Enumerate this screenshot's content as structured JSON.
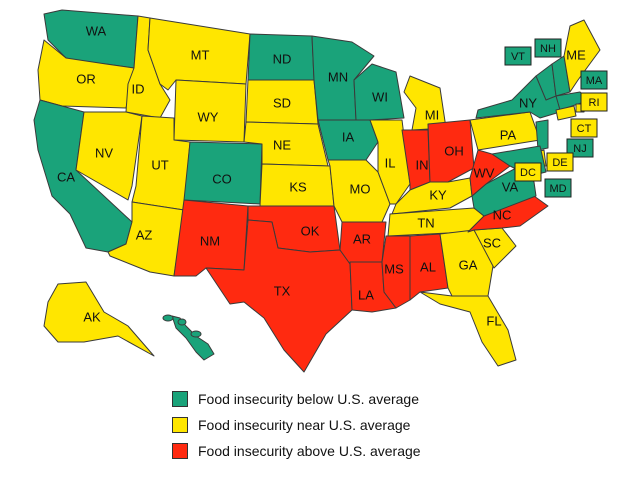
{
  "colors": {
    "below": "#1aa37a",
    "near": "#ffe600",
    "above": "#ff2a10"
  },
  "legend": [
    {
      "category": "below",
      "label": "Food insecurity below U.S. average"
    },
    {
      "category": "near",
      "label": "Food insecurity near U.S. average"
    },
    {
      "category": "above",
      "label": "Food insecurity above U.S. average"
    }
  ],
  "states": [
    {
      "abbr": "WA",
      "cat": "below"
    },
    {
      "abbr": "OR",
      "cat": "near"
    },
    {
      "abbr": "CA",
      "cat": "below"
    },
    {
      "abbr": "ID",
      "cat": "near"
    },
    {
      "abbr": "NV",
      "cat": "near"
    },
    {
      "abbr": "MT",
      "cat": "near"
    },
    {
      "abbr": "WY",
      "cat": "near"
    },
    {
      "abbr": "UT",
      "cat": "near"
    },
    {
      "abbr": "AZ",
      "cat": "near"
    },
    {
      "abbr": "CO",
      "cat": "below"
    },
    {
      "abbr": "NM",
      "cat": "above"
    },
    {
      "abbr": "ND",
      "cat": "below"
    },
    {
      "abbr": "SD",
      "cat": "near"
    },
    {
      "abbr": "NE",
      "cat": "near"
    },
    {
      "abbr": "KS",
      "cat": "near"
    },
    {
      "abbr": "OK",
      "cat": "above"
    },
    {
      "abbr": "TX",
      "cat": "above"
    },
    {
      "abbr": "MN",
      "cat": "below"
    },
    {
      "abbr": "IA",
      "cat": "below"
    },
    {
      "abbr": "MO",
      "cat": "near"
    },
    {
      "abbr": "AR",
      "cat": "above"
    },
    {
      "abbr": "LA",
      "cat": "above"
    },
    {
      "abbr": "WI",
      "cat": "below"
    },
    {
      "abbr": "IL",
      "cat": "near"
    },
    {
      "abbr": "MI",
      "cat": "near"
    },
    {
      "abbr": "IN",
      "cat": "above"
    },
    {
      "abbr": "OH",
      "cat": "above"
    },
    {
      "abbr": "KY",
      "cat": "near"
    },
    {
      "abbr": "TN",
      "cat": "near"
    },
    {
      "abbr": "MS",
      "cat": "above"
    },
    {
      "abbr": "AL",
      "cat": "above"
    },
    {
      "abbr": "GA",
      "cat": "near"
    },
    {
      "abbr": "FL",
      "cat": "near"
    },
    {
      "abbr": "SC",
      "cat": "near"
    },
    {
      "abbr": "NC",
      "cat": "above"
    },
    {
      "abbr": "VA",
      "cat": "below"
    },
    {
      "abbr": "WV",
      "cat": "above"
    },
    {
      "abbr": "PA",
      "cat": "near"
    },
    {
      "abbr": "NY",
      "cat": "below"
    },
    {
      "abbr": "VT",
      "cat": "below"
    },
    {
      "abbr": "NH",
      "cat": "below"
    },
    {
      "abbr": "ME",
      "cat": "near"
    },
    {
      "abbr": "MA",
      "cat": "below"
    },
    {
      "abbr": "RI",
      "cat": "near"
    },
    {
      "abbr": "CT",
      "cat": "near"
    },
    {
      "abbr": "NJ",
      "cat": "below"
    },
    {
      "abbr": "DE",
      "cat": "near"
    },
    {
      "abbr": "MD",
      "cat": "below"
    },
    {
      "abbr": "DC",
      "cat": "near"
    },
    {
      "abbr": "AK",
      "cat": "near"
    },
    {
      "abbr": "HI",
      "cat": "below"
    }
  ]
}
